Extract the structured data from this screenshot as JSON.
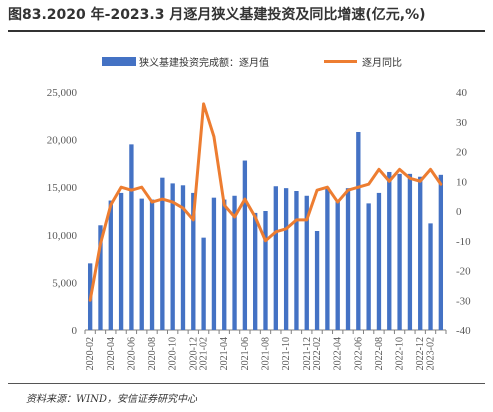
{
  "figure": {
    "title": "图83.2020 年-2023.3 月逐月狭义基建投资及同比增速(亿元,%)",
    "source": "资料来源：WIND，安信证券研究中心"
  },
  "colors": {
    "bar": "#4472c4",
    "line": "#ed7d31",
    "axis": "#808080",
    "text": "#595959"
  },
  "chart_data": {
    "type": "bar",
    "title": "图83.2020 年-2023.3 月逐月狭义基建投资及同比增速(亿元,%)",
    "legend_position": "top-center",
    "grid": false,
    "x": [
      "2020-02",
      "2020-03",
      "2020-04",
      "2020-05",
      "2020-06",
      "2020-07",
      "2020-08",
      "2020-09",
      "2020-10",
      "2020-11",
      "2020-12",
      "2021-02",
      "2021-03",
      "2021-04",
      "2021-05",
      "2021-06",
      "2021-07",
      "2021-08",
      "2021-09",
      "2021-10",
      "2021-11",
      "2021-12",
      "2022-02",
      "2022-03",
      "2022-04",
      "2022-05",
      "2022-06",
      "2022-07",
      "2022-08",
      "2022-09",
      "2022-10",
      "2022-11",
      "2022-12",
      "2023-02",
      "2023-03"
    ],
    "x_tick_labels": [
      "2020-02",
      "2020-04",
      "2020-06",
      "2020-08",
      "2020-10",
      "2020-12",
      "2021-02",
      "2021-04",
      "2021-06",
      "2021-08",
      "2021-10",
      "2021-12",
      "2022-02",
      "2022-04",
      "2022-06",
      "2022-08",
      "2022-10",
      "2022-12",
      "2023-02"
    ],
    "series": [
      {
        "name": "狭义基建投资完成额：逐月值",
        "type": "bar",
        "axis": "left",
        "values": [
          7000,
          11000,
          13600,
          14400,
          19500,
          13800,
          13700,
          16000,
          15400,
          15200,
          14400,
          9700,
          13900,
          13700,
          14100,
          17800,
          12300,
          12500,
          15100,
          14900,
          14600,
          14100,
          10400,
          15000,
          13600,
          14900,
          20800,
          13300,
          14400,
          16600,
          16400,
          16400,
          16100,
          11200,
          16300
        ]
      },
      {
        "name": "逐月同比",
        "type": "line",
        "axis": "right",
        "values": [
          -30,
          -11,
          2,
          8,
          7,
          8,
          3,
          4,
          3,
          1,
          -3,
          36,
          25,
          2,
          -2,
          4,
          -2,
          -10,
          -7,
          -6,
          -3,
          -3,
          7,
          8,
          3,
          7,
          8,
          9,
          14,
          10,
          14,
          11,
          10,
          14,
          9
        ]
      }
    ],
    "y_left": {
      "ylim": [
        0,
        25000
      ],
      "ticks": [
        0,
        5000,
        10000,
        15000,
        20000,
        25000
      ],
      "tick_labels": [
        "0",
        "5,000",
        "10,000",
        "15,000",
        "20,000",
        "25,000"
      ]
    },
    "y_right": {
      "ylim": [
        -40,
        40
      ],
      "ticks": [
        -40,
        -30,
        -20,
        -10,
        0,
        10,
        20,
        30,
        40
      ],
      "tick_labels": [
        "-40",
        "-30",
        "-20",
        "-10",
        "0",
        "10",
        "20",
        "30",
        "40"
      ]
    }
  }
}
